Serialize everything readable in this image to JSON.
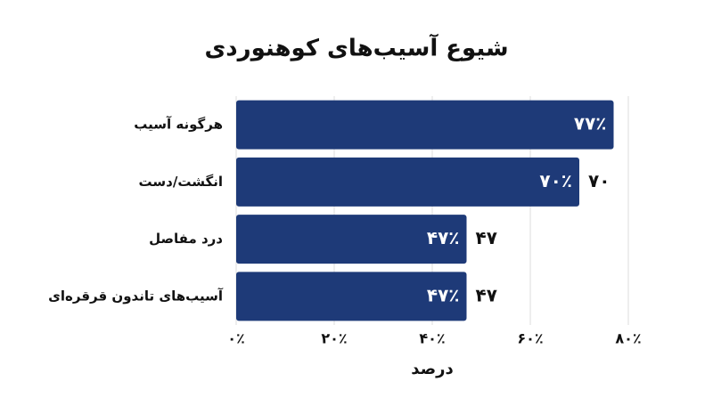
{
  "chart_data": {
    "type": "bar",
    "orientation": "horizontal",
    "title": "شیوع آسیب‌های کوهنوردی",
    "x_label": "درصد",
    "categories": [
      "هرگونه آسیب",
      "انگشت/دست",
      "درد مفاصل",
      "آسیب‌های تاندون قرقره‌ای"
    ],
    "values": [
      77,
      70,
      47,
      47
    ],
    "value_labels": [
      "۷۷٪",
      "۷۰٪",
      "۴۷٪",
      "۴۷٪"
    ],
    "value_labels_outside": [
      null,
      "۷۰",
      "۴۷",
      "۴۷"
    ],
    "color": "#1e3a78",
    "xlim": [
      0,
      80
    ],
    "xticks": [
      {
        "value": 0,
        "label": "۰٪"
      },
      {
        "value": 20,
        "label": "۲۰٪"
      },
      {
        "value": 40,
        "label": "۴۰٪"
      },
      {
        "value": 60,
        "label": "۶۰٪"
      },
      {
        "value": 80,
        "label": "۸۰٪"
      }
    ],
    "grid": true
  }
}
